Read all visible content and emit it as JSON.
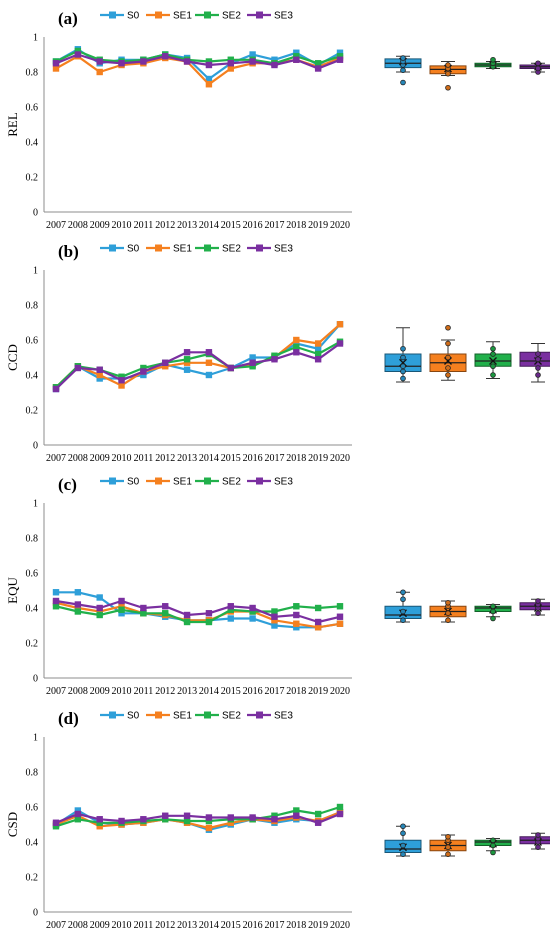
{
  "colors": {
    "S0": "#2e9fd9",
    "SE1": "#f5801f",
    "SE2": "#21b04b",
    "SE3": "#7a2fa0"
  },
  "chart_data": [
    {
      "type": "line",
      "panel_label": "(a)",
      "ylabel": "REL",
      "ylim": [
        0,
        1
      ],
      "yticks": [
        "0",
        "0.2",
        "0.4",
        "0.6",
        "0.8",
        "1"
      ],
      "legend": "top-center",
      "categories": [
        "2007",
        "2008",
        "2009",
        "2010",
        "2011",
        "2012",
        "2013",
        "2014",
        "2015",
        "2016",
        "2017",
        "2018",
        "2019",
        "2020"
      ],
      "series": [
        {
          "name": "S0",
          "values": [
            0.86,
            0.93,
            0.85,
            0.87,
            0.87,
            0.9,
            0.88,
            0.76,
            0.85,
            0.9,
            0.87,
            0.91,
            0.84,
            0.91
          ]
        },
        {
          "name": "SE1",
          "values": [
            0.82,
            0.89,
            0.8,
            0.84,
            0.85,
            0.88,
            0.86,
            0.73,
            0.82,
            0.85,
            0.85,
            0.87,
            0.83,
            0.88
          ]
        },
        {
          "name": "SE2",
          "values": [
            0.86,
            0.92,
            0.87,
            0.86,
            0.87,
            0.9,
            0.87,
            0.86,
            0.87,
            0.87,
            0.85,
            0.89,
            0.85,
            0.89
          ]
        },
        {
          "name": "SE3",
          "values": [
            0.85,
            0.9,
            0.86,
            0.85,
            0.86,
            0.89,
            0.86,
            0.84,
            0.85,
            0.86,
            0.84,
            0.87,
            0.82,
            0.87
          ]
        }
      ],
      "boxplots": [
        {
          "name": "S0",
          "min": 0.8,
          "q1": 0.825,
          "median": 0.85,
          "q3": 0.875,
          "max": 0.89,
          "mean": 0.86,
          "points": [
            0.74,
            0.81,
            0.84,
            0.86,
            0.88
          ]
        },
        {
          "name": "SE1",
          "min": 0.78,
          "q1": 0.79,
          "median": 0.815,
          "q3": 0.835,
          "max": 0.86,
          "mean": 0.82,
          "points": [
            0.71,
            0.79,
            0.82,
            0.84
          ]
        },
        {
          "name": "SE2",
          "min": 0.82,
          "q1": 0.83,
          "median": 0.84,
          "q3": 0.85,
          "max": 0.86,
          "mean": 0.84,
          "points": [
            0.83,
            0.85,
            0.87
          ]
        },
        {
          "name": "SE3",
          "min": 0.8,
          "q1": 0.82,
          "median": 0.83,
          "q3": 0.84,
          "max": 0.85,
          "mean": 0.83,
          "points": [
            0.8,
            0.82,
            0.85
          ]
        }
      ]
    },
    {
      "type": "line",
      "panel_label": "(b)",
      "ylabel": "CCD",
      "ylim": [
        0,
        1
      ],
      "yticks": [
        "0",
        "0.2",
        "0.4",
        "0.6",
        "0.8",
        "1"
      ],
      "legend": "top-center",
      "categories": [
        "2007",
        "2008",
        "2009",
        "2010",
        "2011",
        "2012",
        "2013",
        "2014",
        "2015",
        "2016",
        "2017",
        "2018",
        "2019",
        "2020"
      ],
      "series": [
        {
          "name": "S0",
          "values": [
            0.32,
            0.45,
            0.38,
            0.38,
            0.4,
            0.46,
            0.43,
            0.4,
            0.44,
            0.5,
            0.5,
            0.58,
            0.55,
            0.69
          ]
        },
        {
          "name": "SE1",
          "values": [
            0.33,
            0.45,
            0.4,
            0.34,
            0.42,
            0.45,
            0.47,
            0.47,
            0.44,
            0.46,
            0.5,
            0.6,
            0.58,
            0.69
          ]
        },
        {
          "name": "SE2",
          "values": [
            0.33,
            0.45,
            0.43,
            0.39,
            0.44,
            0.47,
            0.49,
            0.52,
            0.44,
            0.45,
            0.51,
            0.56,
            0.52,
            0.59
          ]
        },
        {
          "name": "SE3",
          "values": [
            0.32,
            0.44,
            0.43,
            0.37,
            0.42,
            0.47,
            0.53,
            0.53,
            0.44,
            0.47,
            0.49,
            0.53,
            0.49,
            0.58
          ]
        }
      ],
      "boxplots": [
        {
          "name": "S0",
          "min": 0.36,
          "q1": 0.42,
          "median": 0.45,
          "q3": 0.52,
          "max": 0.67,
          "mean": 0.47,
          "points": [
            0.38,
            0.42,
            0.45,
            0.5,
            0.55
          ]
        },
        {
          "name": "SE1",
          "min": 0.37,
          "q1": 0.42,
          "median": 0.47,
          "q3": 0.52,
          "max": 0.6,
          "mean": 0.48,
          "points": [
            0.4,
            0.44,
            0.5,
            0.58,
            0.67
          ]
        },
        {
          "name": "SE2",
          "min": 0.38,
          "q1": 0.45,
          "median": 0.48,
          "q3": 0.52,
          "max": 0.59,
          "mean": 0.48,
          "points": [
            0.4,
            0.45,
            0.52,
            0.55
          ]
        },
        {
          "name": "SE3",
          "min": 0.36,
          "q1": 0.45,
          "median": 0.48,
          "q3": 0.53,
          "max": 0.58,
          "mean": 0.48,
          "points": [
            0.4,
            0.44,
            0.49,
            0.52
          ]
        }
      ]
    },
    {
      "type": "line",
      "panel_label": "(c)",
      "ylabel": "EQU",
      "ylim": [
        0,
        1
      ],
      "yticks": [
        "0",
        "0.2",
        "0.4",
        "0.6",
        "0.8",
        "1"
      ],
      "legend": "top-center",
      "categories": [
        "2007",
        "2008",
        "2009",
        "2010",
        "2011",
        "2012",
        "2013",
        "2014",
        "2015",
        "2016",
        "2017",
        "2018",
        "2019",
        "2020"
      ],
      "series": [
        {
          "name": "S0",
          "values": [
            0.49,
            0.49,
            0.46,
            0.37,
            0.37,
            0.35,
            0.33,
            0.33,
            0.34,
            0.34,
            0.3,
            0.29,
            0.29,
            0.31
          ]
        },
        {
          "name": "SE1",
          "values": [
            0.43,
            0.4,
            0.38,
            0.41,
            0.37,
            0.36,
            0.33,
            0.33,
            0.38,
            0.38,
            0.33,
            0.31,
            0.29,
            0.31
          ]
        },
        {
          "name": "SE2",
          "values": [
            0.41,
            0.38,
            0.36,
            0.39,
            0.37,
            0.37,
            0.32,
            0.32,
            0.39,
            0.38,
            0.38,
            0.41,
            0.4,
            0.41
          ]
        },
        {
          "name": "SE3",
          "values": [
            0.44,
            0.42,
            0.4,
            0.44,
            0.4,
            0.41,
            0.36,
            0.37,
            0.41,
            0.4,
            0.35,
            0.36,
            0.32,
            0.35
          ]
        }
      ],
      "boxplots": [
        {
          "name": "S0",
          "min": 0.32,
          "q1": 0.34,
          "median": 0.36,
          "q3": 0.41,
          "max": 0.49,
          "mean": 0.37,
          "points": [
            0.33,
            0.38,
            0.45,
            0.49
          ]
        },
        {
          "name": "SE1",
          "min": 0.32,
          "q1": 0.35,
          "median": 0.38,
          "q3": 0.41,
          "max": 0.44,
          "mean": 0.38,
          "points": [
            0.33,
            0.37,
            0.41,
            0.43
          ]
        },
        {
          "name": "SE2",
          "min": 0.35,
          "q1": 0.38,
          "median": 0.4,
          "q3": 0.41,
          "max": 0.42,
          "mean": 0.39,
          "points": [
            0.34,
            0.38,
            0.41
          ]
        },
        {
          "name": "SE3",
          "min": 0.36,
          "q1": 0.39,
          "median": 0.41,
          "q3": 0.43,
          "max": 0.45,
          "mean": 0.4,
          "points": [
            0.37,
            0.4,
            0.42,
            0.44
          ]
        }
      ]
    },
    {
      "type": "line",
      "panel_label": "(d)",
      "ylabel": "CSD",
      "ylim": [
        0,
        1
      ],
      "yticks": [
        "0",
        "0.2",
        "0.4",
        "0.6",
        "0.8",
        "1"
      ],
      "legend": "top-center",
      "categories": [
        "2007",
        "2008",
        "2009",
        "2010",
        "2011",
        "2012",
        "2013",
        "2014",
        "2015",
        "2016",
        "2017",
        "2018",
        "2019",
        "2020"
      ],
      "series": [
        {
          "name": "S0",
          "values": [
            0.5,
            0.58,
            0.51,
            0.5,
            0.51,
            0.53,
            0.51,
            0.47,
            0.5,
            0.53,
            0.51,
            0.53,
            0.52,
            0.57
          ]
        },
        {
          "name": "SE1",
          "values": [
            0.5,
            0.55,
            0.49,
            0.5,
            0.51,
            0.53,
            0.51,
            0.48,
            0.51,
            0.53,
            0.52,
            0.54,
            0.52,
            0.57
          ]
        },
        {
          "name": "SE2",
          "values": [
            0.49,
            0.53,
            0.51,
            0.51,
            0.52,
            0.53,
            0.52,
            0.52,
            0.53,
            0.53,
            0.55,
            0.58,
            0.56,
            0.6
          ]
        },
        {
          "name": "SE3",
          "values": [
            0.51,
            0.56,
            0.53,
            0.52,
            0.53,
            0.55,
            0.55,
            0.54,
            0.54,
            0.54,
            0.53,
            0.55,
            0.51,
            0.56
          ]
        }
      ],
      "boxplots": [
        {
          "name": "S0",
          "min": 0.32,
          "q1": 0.34,
          "median": 0.36,
          "q3": 0.41,
          "max": 0.49,
          "mean": 0.37,
          "points": [
            0.33,
            0.38,
            0.45,
            0.49
          ]
        },
        {
          "name": "SE1",
          "min": 0.32,
          "q1": 0.35,
          "median": 0.38,
          "q3": 0.41,
          "max": 0.44,
          "mean": 0.38,
          "points": [
            0.33,
            0.37,
            0.41,
            0.43
          ]
        },
        {
          "name": "SE2",
          "min": 0.35,
          "q1": 0.38,
          "median": 0.4,
          "q3": 0.41,
          "max": 0.42,
          "mean": 0.39,
          "points": [
            0.34,
            0.38,
            0.41
          ]
        },
        {
          "name": "SE3",
          "min": 0.36,
          "q1": 0.39,
          "median": 0.41,
          "q3": 0.43,
          "max": 0.45,
          "mean": 0.4,
          "points": [
            0.37,
            0.4,
            0.42,
            0.44
          ]
        }
      ]
    }
  ]
}
